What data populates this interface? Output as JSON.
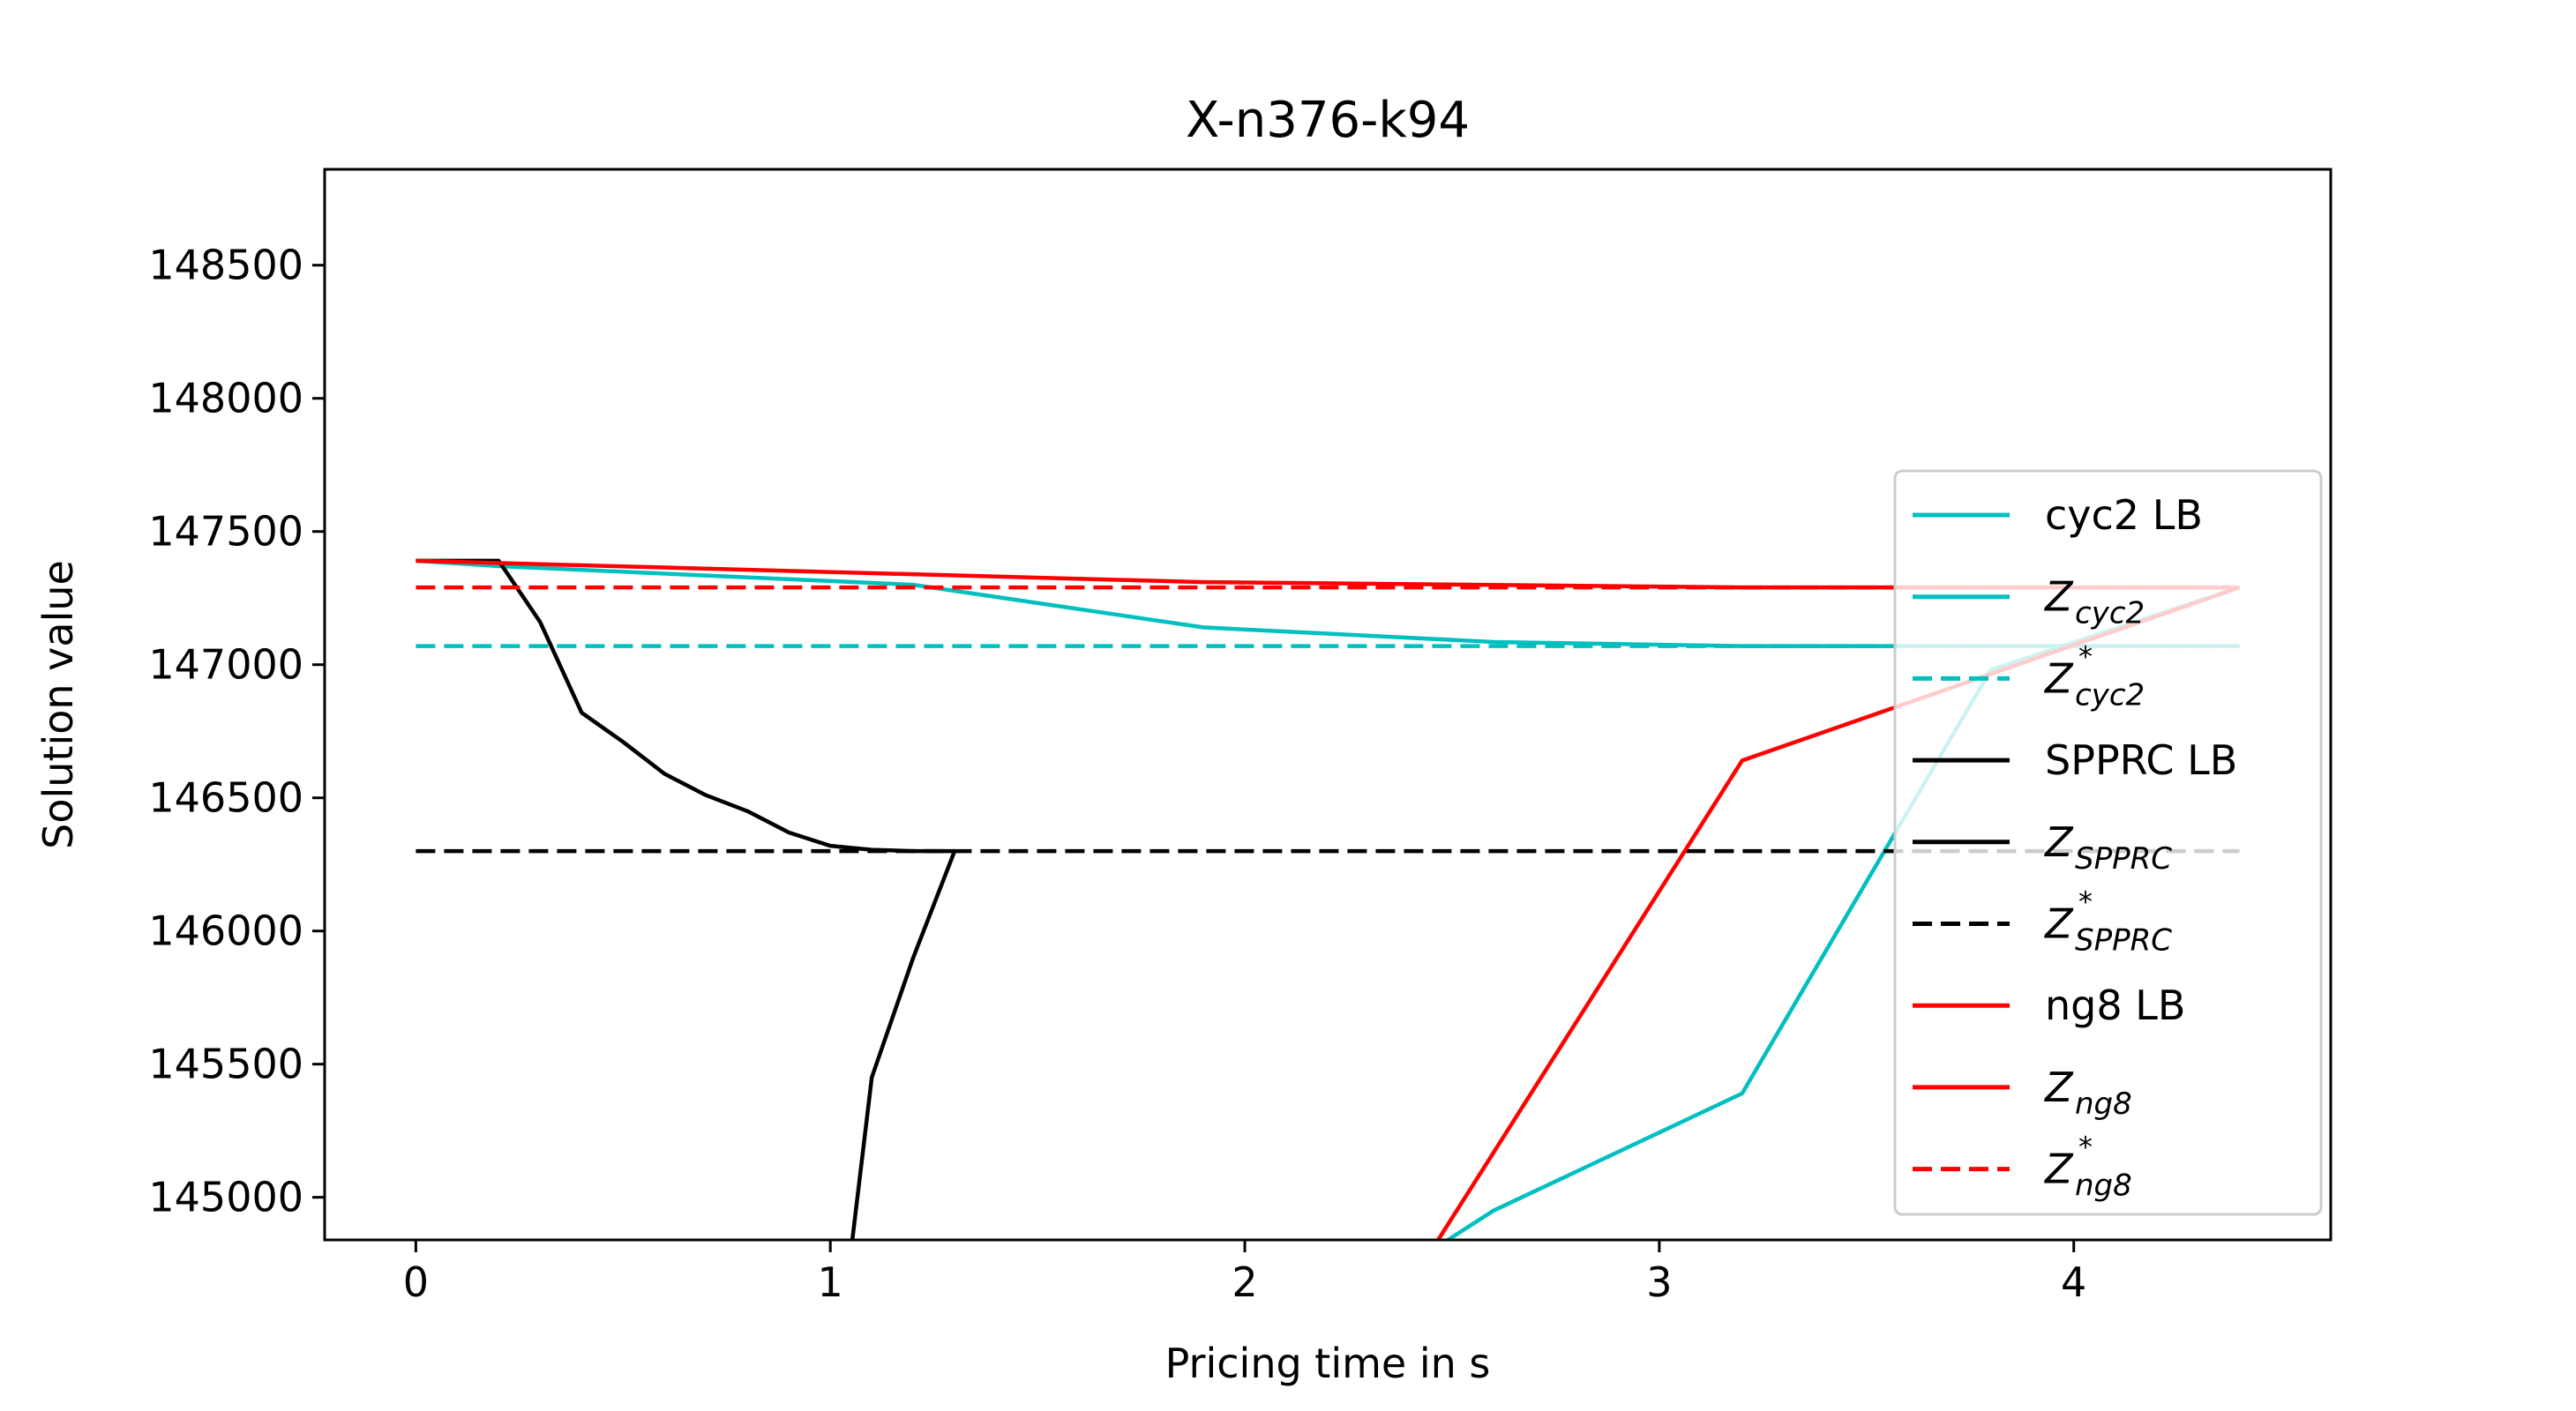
{
  "chart_data": {
    "type": "line",
    "title": "X-n376-k94",
    "xlabel": "Pricing time in s",
    "ylabel": "Solution value",
    "xlim": [
      -0.22,
      4.62
    ],
    "ylim": [
      144840,
      148860
    ],
    "xticks": [
      0,
      1,
      2,
      3,
      4
    ],
    "yticks": [
      145000,
      145500,
      146000,
      146500,
      147000,
      147500,
      148000,
      148500
    ],
    "grid": false,
    "legend_position": "right",
    "legend_alpha": 0.8,
    "series": [
      {
        "name": "cyc2 LB",
        "color": "#00bfbf",
        "dash": "solid",
        "x": [
          2.45,
          2.6,
          3.2,
          3.8,
          4.4
        ],
        "y": [
          144800,
          144950,
          145390,
          146980,
          147290
        ]
      },
      {
        "name": "Z_cyc2",
        "color": "#00bfbf",
        "dash": "solid",
        "x": [
          0,
          0.2,
          1.2,
          1.9,
          2.6,
          3.2,
          3.8,
          4.4
        ],
        "y": [
          147390,
          147370,
          147300,
          147140,
          147085,
          147070,
          147070,
          147070
        ]
      },
      {
        "name": "Z*_cyc2",
        "color": "#00bfbf",
        "dash": "dashed",
        "x": [
          0,
          4.4
        ],
        "y": [
          147070,
          147070
        ]
      },
      {
        "name": "SPPRC LB",
        "color": "#000000",
        "dash": "solid",
        "x": [
          1.05,
          1.1,
          1.2,
          1.3
        ],
        "y": [
          144800,
          145450,
          145900,
          146300
        ]
      },
      {
        "name": "Z_SPPRC",
        "color": "#000000",
        "dash": "solid",
        "x": [
          0,
          0.2,
          0.3,
          0.4,
          0.5,
          0.6,
          0.7,
          0.8,
          0.9,
          1.0,
          1.1,
          1.2,
          1.3
        ],
        "y": [
          147390,
          147390,
          147160,
          146820,
          146710,
          146590,
          146510,
          146450,
          146370,
          146320,
          146305,
          146300,
          146300
        ]
      },
      {
        "name": "Z*_SPPRC",
        "color": "#000000",
        "dash": "dashed",
        "x": [
          0,
          4.4
        ],
        "y": [
          146300,
          146300
        ]
      },
      {
        "name": "ng8 LB",
        "color": "#ff0000",
        "dash": "solid",
        "x": [
          2.45,
          3.2,
          4.4
        ],
        "y": [
          144800,
          146640,
          147290
        ]
      },
      {
        "name": "Z_ng8",
        "color": "#ff0000",
        "dash": "solid",
        "x": [
          0,
          1.9,
          3.2,
          4.4
        ],
        "y": [
          147390,
          147310,
          147290,
          147290
        ]
      },
      {
        "name": "Z*_ng8",
        "color": "#ff0000",
        "dash": "dashed",
        "x": [
          0,
          4.4
        ],
        "y": [
          147290,
          147290
        ]
      }
    ],
    "legend": [
      {
        "main": "cyc2 LB",
        "italic": false,
        "sub": "",
        "sup": "",
        "color": "#00bfbf",
        "dash": "solid"
      },
      {
        "main": "Z",
        "italic": true,
        "sub": "cyc2",
        "sup": "",
        "color": "#00bfbf",
        "dash": "solid"
      },
      {
        "main": "Z",
        "italic": true,
        "sub": "cyc2",
        "sup": "*",
        "color": "#00bfbf",
        "dash": "dashed"
      },
      {
        "main": "SPPRC LB",
        "italic": false,
        "sub": "",
        "sup": "",
        "color": "#000000",
        "dash": "solid"
      },
      {
        "main": "Z",
        "italic": true,
        "sub": "SPPRC",
        "sup": "",
        "color": "#000000",
        "dash": "solid"
      },
      {
        "main": "Z",
        "italic": true,
        "sub": "SPPRC",
        "sup": "*",
        "color": "#000000",
        "dash": "dashed"
      },
      {
        "main": "ng8 LB",
        "italic": false,
        "sub": "",
        "sup": "",
        "color": "#ff0000",
        "dash": "solid"
      },
      {
        "main": "Z",
        "italic": true,
        "sub": "ng8",
        "sup": "",
        "color": "#ff0000",
        "dash": "solid"
      },
      {
        "main": "Z",
        "italic": true,
        "sub": "ng8",
        "sup": "*",
        "color": "#ff0000",
        "dash": "dashed"
      }
    ]
  }
}
